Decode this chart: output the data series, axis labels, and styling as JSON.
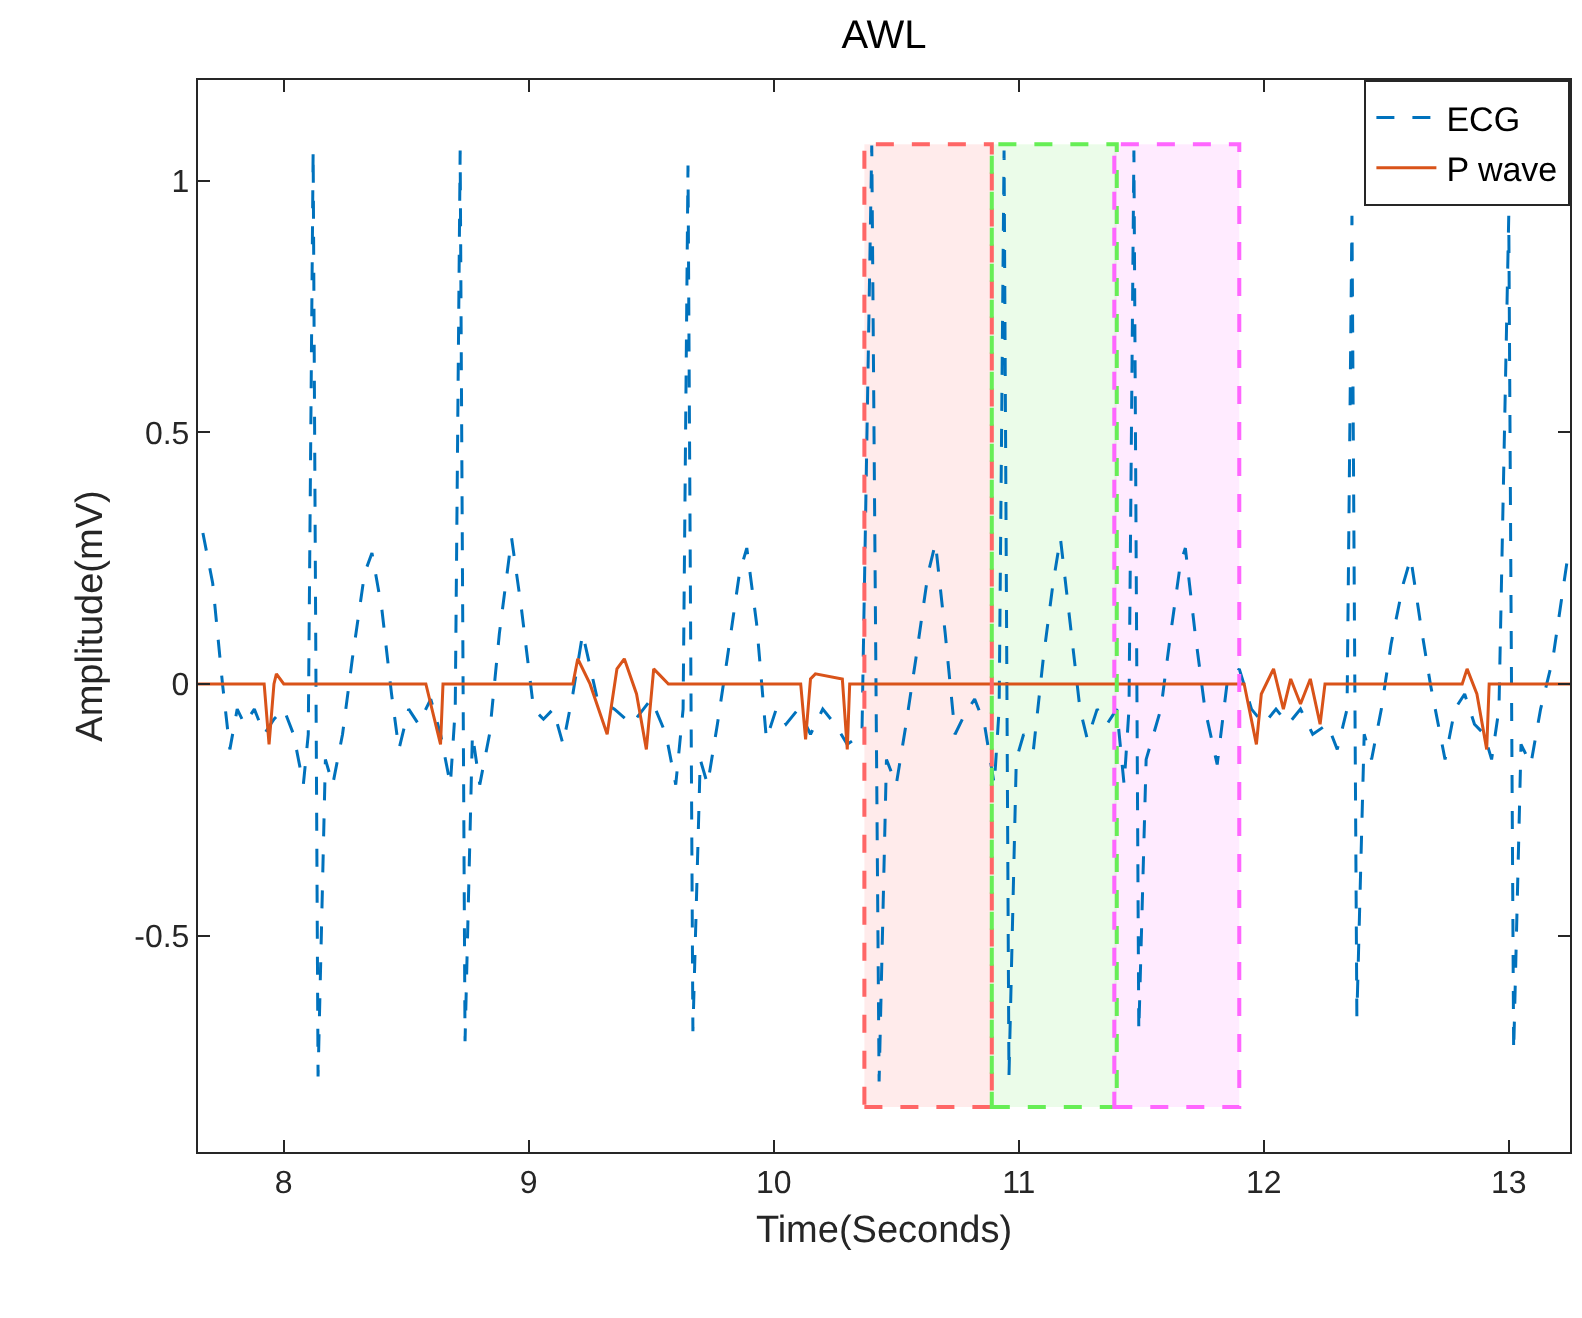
{
  "chart_data": {
    "type": "line",
    "title": "AWL",
    "xlabel": "Time(Seconds)",
    "ylabel": "Amplitude(mV)",
    "xlim": [
      7.65,
      13.25
    ],
    "xticks": [
      8,
      9,
      10,
      11,
      12,
      13
    ],
    "ylim": [
      -0.93,
      1.2
    ],
    "yticks": [
      -0.5,
      0,
      0.5,
      1
    ],
    "grid": false,
    "legend": "top right",
    "marker": "none",
    "series": [
      {
        "name": "ECG",
        "color": "#0072bd",
        "line_style": "dashed",
        "x": [
          7.67,
          7.71,
          7.75,
          7.78,
          7.81,
          7.84,
          7.88,
          7.92,
          7.96,
          8.0,
          8.04,
          8.08,
          8.1,
          8.12,
          8.14,
          8.17,
          8.2,
          8.24,
          8.28,
          8.33,
          8.36,
          8.4,
          8.44,
          8.47,
          8.51,
          8.55,
          8.6,
          8.64,
          8.68,
          8.7,
          8.72,
          8.74,
          8.77,
          8.8,
          8.84,
          8.88,
          8.93,
          8.97,
          9.02,
          9.06,
          9.1,
          9.14,
          9.18,
          9.22,
          9.28,
          9.35,
          9.42,
          9.5,
          9.56,
          9.6,
          9.63,
          9.65,
          9.67,
          9.7,
          9.73,
          9.77,
          9.81,
          9.86,
          9.89,
          9.93,
          9.97,
          10.01,
          10.05,
          10.1,
          10.15,
          10.2,
          10.25,
          10.3,
          10.36,
          10.4,
          10.43,
          10.46,
          10.5,
          10.54,
          10.58,
          10.63,
          10.66,
          10.7,
          10.74,
          10.78,
          10.82,
          10.86,
          10.9,
          10.92,
          10.94,
          10.96,
          10.99,
          11.02,
          11.06,
          11.1,
          11.14,
          11.17,
          11.21,
          11.25,
          11.28,
          11.32,
          11.36,
          11.4,
          11.43,
          11.45,
          11.47,
          11.49,
          11.52,
          11.55,
          11.58,
          11.62,
          11.66,
          11.68,
          11.72,
          11.76,
          11.81,
          11.85,
          11.9,
          11.95,
          12.0,
          12.05,
          12.1,
          12.15,
          12.2,
          12.26,
          12.3,
          12.34,
          12.36,
          12.38,
          12.41,
          12.44,
          12.48,
          12.52,
          12.57,
          12.6,
          12.64,
          12.68,
          12.74,
          12.78,
          12.82,
          12.86,
          12.9,
          12.93,
          12.96,
          13.0,
          13.02,
          13.05,
          13.09,
          13.13,
          13.18,
          13.24
        ],
        "values": [
          0.3,
          0.2,
          0.0,
          -0.13,
          -0.05,
          -0.08,
          -0.05,
          -0.1,
          -0.07,
          -0.05,
          -0.1,
          -0.2,
          -0.1,
          1.06,
          -0.78,
          -0.15,
          -0.2,
          -0.1,
          0.05,
          0.22,
          0.26,
          0.15,
          -0.02,
          -0.13,
          -0.05,
          -0.08,
          -0.03,
          -0.1,
          -0.2,
          -0.05,
          1.06,
          -0.71,
          -0.1,
          -0.2,
          -0.1,
          0.1,
          0.29,
          0.15,
          -0.05,
          -0.07,
          -0.05,
          -0.12,
          -0.02,
          0.1,
          -0.03,
          -0.05,
          -0.08,
          -0.03,
          -0.1,
          -0.2,
          -0.05,
          1.03,
          -0.69,
          -0.15,
          -0.2,
          -0.08,
          0.05,
          0.22,
          0.27,
          0.12,
          -0.11,
          -0.05,
          -0.08,
          -0.05,
          -0.1,
          -0.05,
          -0.08,
          -0.12,
          -0.1,
          1.07,
          -0.79,
          -0.15,
          -0.2,
          -0.08,
          0.05,
          0.22,
          0.28,
          0.1,
          -0.1,
          -0.06,
          -0.03,
          -0.08,
          -0.2,
          -0.05,
          1.06,
          -0.78,
          -0.15,
          -0.1,
          -0.13,
          0.05,
          0.2,
          0.29,
          0.12,
          -0.05,
          -0.11,
          -0.05,
          -0.08,
          -0.05,
          -0.2,
          -0.05,
          1.06,
          -0.69,
          -0.15,
          -0.1,
          -0.05,
          0.1,
          0.24,
          0.27,
          0.1,
          -0.05,
          -0.16,
          0.0,
          0.03,
          -0.05,
          -0.08,
          -0.05,
          -0.08,
          -0.05,
          -0.1,
          -0.08,
          -0.13,
          -0.05,
          0.93,
          -0.66,
          -0.1,
          -0.15,
          -0.05,
          0.08,
          0.2,
          0.25,
          0.12,
          0.0,
          -0.15,
          -0.05,
          -0.02,
          -0.08,
          -0.1,
          -0.15,
          -0.05,
          0.93,
          -0.73,
          -0.12,
          -0.16,
          -0.05,
          0.05,
          0.25
        ]
      },
      {
        "name": "P wave",
        "color": "#d95319",
        "line_style": "solid",
        "x": [
          7.65,
          7.92,
          7.94,
          7.96,
          7.97,
          8.0,
          8.58,
          8.64,
          8.65,
          9.18,
          9.2,
          9.25,
          9.32,
          9.36,
          9.39,
          9.44,
          9.48,
          9.51,
          9.53,
          9.57,
          10.11,
          10.13,
          10.15,
          10.17,
          10.28,
          10.3,
          10.31,
          11.92,
          11.97,
          11.99,
          12.04,
          12.08,
          12.11,
          12.15,
          12.19,
          12.23,
          12.25,
          12.3,
          12.81,
          12.83,
          12.87,
          12.91,
          12.92,
          13.25
        ],
        "values": [
          0,
          0,
          -0.12,
          0,
          0.02,
          0,
          0,
          -0.12,
          0,
          0,
          0.05,
          0.0,
          -0.1,
          0.03,
          0.05,
          -0.02,
          -0.13,
          0.03,
          0.02,
          0,
          0,
          -0.11,
          0.01,
          0.02,
          0.01,
          -0.13,
          0,
          0,
          -0.12,
          -0.02,
          0.03,
          -0.05,
          0.01,
          -0.04,
          0.01,
          -0.08,
          0,
          0,
          0,
          0.03,
          -0.02,
          -0.13,
          0,
          0
        ]
      }
    ],
    "bands": [
      {
        "axis": "x",
        "from": 10.37,
        "to": 10.89,
        "color": "#ff6666"
      },
      {
        "axis": "x",
        "from": 10.89,
        "to": 11.4,
        "color": "#66ee55"
      },
      {
        "axis": "x",
        "from": 11.39,
        "to": 11.9,
        "color": "#ff66ff"
      }
    ]
  }
}
